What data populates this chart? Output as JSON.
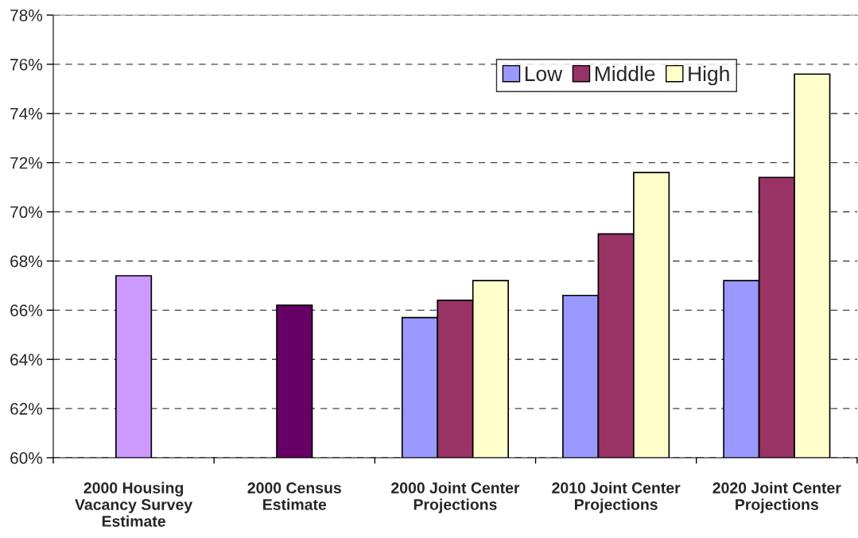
{
  "chart_data": {
    "type": "bar",
    "categories": [
      "2000 Housing\nVacancy Survey\nEstimate",
      "2000 Census\nEstimate",
      "2000 Joint Center\nProjections",
      "2010 Joint Center\nProjections",
      "2020 Joint Center\nProjections"
    ],
    "series": [
      {
        "name": "Low",
        "color": "#9999ff",
        "values": [
          null,
          null,
          65.7,
          66.6,
          67.2
        ]
      },
      {
        "name": "Middle",
        "color": "#993366",
        "colors": [
          "#cc99ff",
          "#660066",
          "#993366",
          "#993366",
          "#993366"
        ],
        "values": [
          67.4,
          66.2,
          66.4,
          69.1,
          71.4
        ]
      },
      {
        "name": "High",
        "color": "#ffffcc",
        "values": [
          null,
          null,
          67.2,
          71.6,
          75.6
        ]
      }
    ],
    "ylim": [
      60,
      78
    ],
    "yticks": [
      {
        "value": 60,
        "label": "60%"
      },
      {
        "value": 62,
        "label": "62%"
      },
      {
        "value": 64,
        "label": "64%"
      },
      {
        "value": 66,
        "label": "66%"
      },
      {
        "value": 68,
        "label": "68%"
      },
      {
        "value": 70,
        "label": "70%"
      },
      {
        "value": 72,
        "label": "72%"
      },
      {
        "value": 74,
        "label": "74%"
      },
      {
        "value": 76,
        "label": "76%"
      },
      {
        "value": 78,
        "label": "78%"
      }
    ],
    "grid": "y",
    "legend": "top right"
  }
}
